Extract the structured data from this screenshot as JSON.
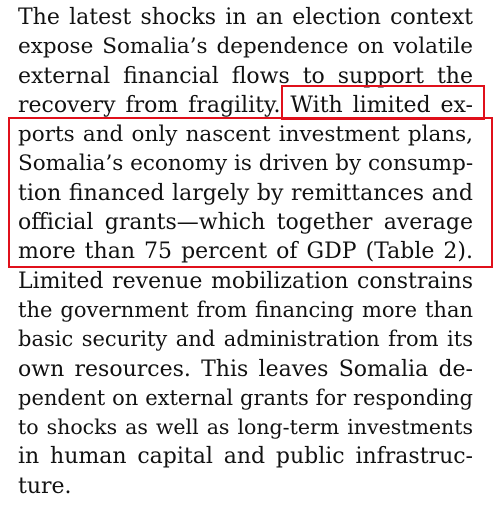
{
  "paragraph": {
    "lines": [
      "The latest shocks in an election context",
      "expose Somalia’s dependence on volatile",
      "external financial flows to support the",
      "recovery from fragility. With limited ex-",
      "ports and only nascent investment plans,",
      "Somalia’s economy is driven by consump-",
      "tion financed largely by remittances and",
      "official grants—which together average",
      "more than 75 percent of GDP (Table 2).",
      "Limited revenue mobilization constrains",
      "the government from financing more than",
      "basic security and administration from its",
      "own resources. This leaves Somalia de-",
      "pendent on external grants for responding",
      "to shocks as well as long-term investments",
      "in human capital and public infrastruc-",
      "ture."
    ]
  },
  "highlight": {
    "color": "#e0101b"
  }
}
